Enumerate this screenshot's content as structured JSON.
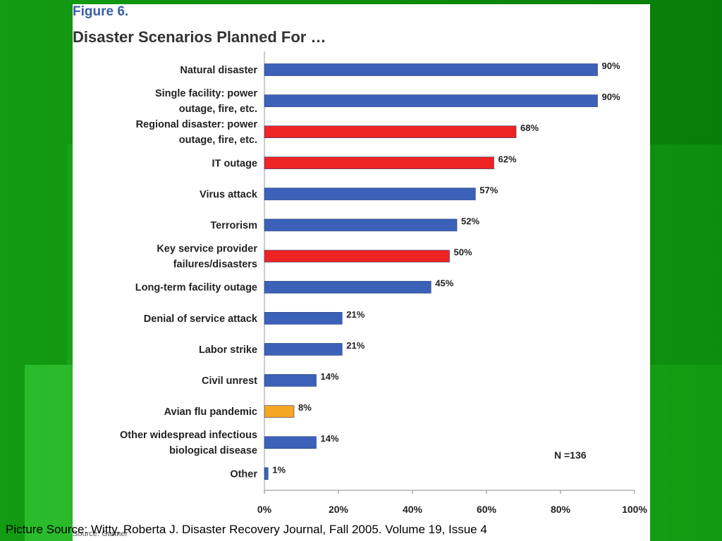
{
  "figure_label": "Figure 6.",
  "title": "Disaster Scenarios Planned For …",
  "n_label": "N =136",
  "source_note": "Source: Gartner",
  "caption": "Picture Source: Witty, Roberta J. Disaster Recovery Journal, Fall 2005.  Volume 19, Issue 4",
  "colors": {
    "blue": "#3b61b8",
    "red": "#ee2424",
    "orange": "#f5a623"
  },
  "chart_data": {
    "type": "bar",
    "orientation": "horizontal",
    "title": "Disaster Scenarios Planned For …",
    "xlim": [
      0,
      100
    ],
    "xticks": [
      "0%",
      "20%",
      "40%",
      "60%",
      "80%",
      "100%"
    ],
    "grid": false,
    "categories": [
      [
        "Natural disaster"
      ],
      [
        "Single facility: power",
        "outage, fire, etc."
      ],
      [
        "Regional disaster: power",
        "outage, fire, etc."
      ],
      [
        "IT outage"
      ],
      [
        "Virus attack"
      ],
      [
        "Terrorism"
      ],
      [
        "Key service provider",
        "failures/disasters"
      ],
      [
        "Long-term facility outage"
      ],
      [
        "Denial of service attack"
      ],
      [
        "Labor strike"
      ],
      [
        "Civil unrest"
      ],
      [
        "Avian flu pandemic"
      ],
      [
        "Other widespread infectious",
        "biological disease"
      ],
      [
        "Other"
      ]
    ],
    "values": [
      90,
      90,
      68,
      62,
      57,
      52,
      50,
      45,
      21,
      21,
      14,
      8,
      14,
      1
    ],
    "value_labels": [
      "90%",
      "90%",
      "68%",
      "62%",
      "57%",
      "52%",
      "50%",
      "45%",
      "21%",
      "21%",
      "14%",
      "8%",
      "14%",
      "1%"
    ],
    "bar_colors": [
      "blue",
      "blue",
      "red",
      "red",
      "blue",
      "blue",
      "red",
      "blue",
      "blue",
      "blue",
      "blue",
      "orange",
      "blue",
      "blue"
    ]
  }
}
